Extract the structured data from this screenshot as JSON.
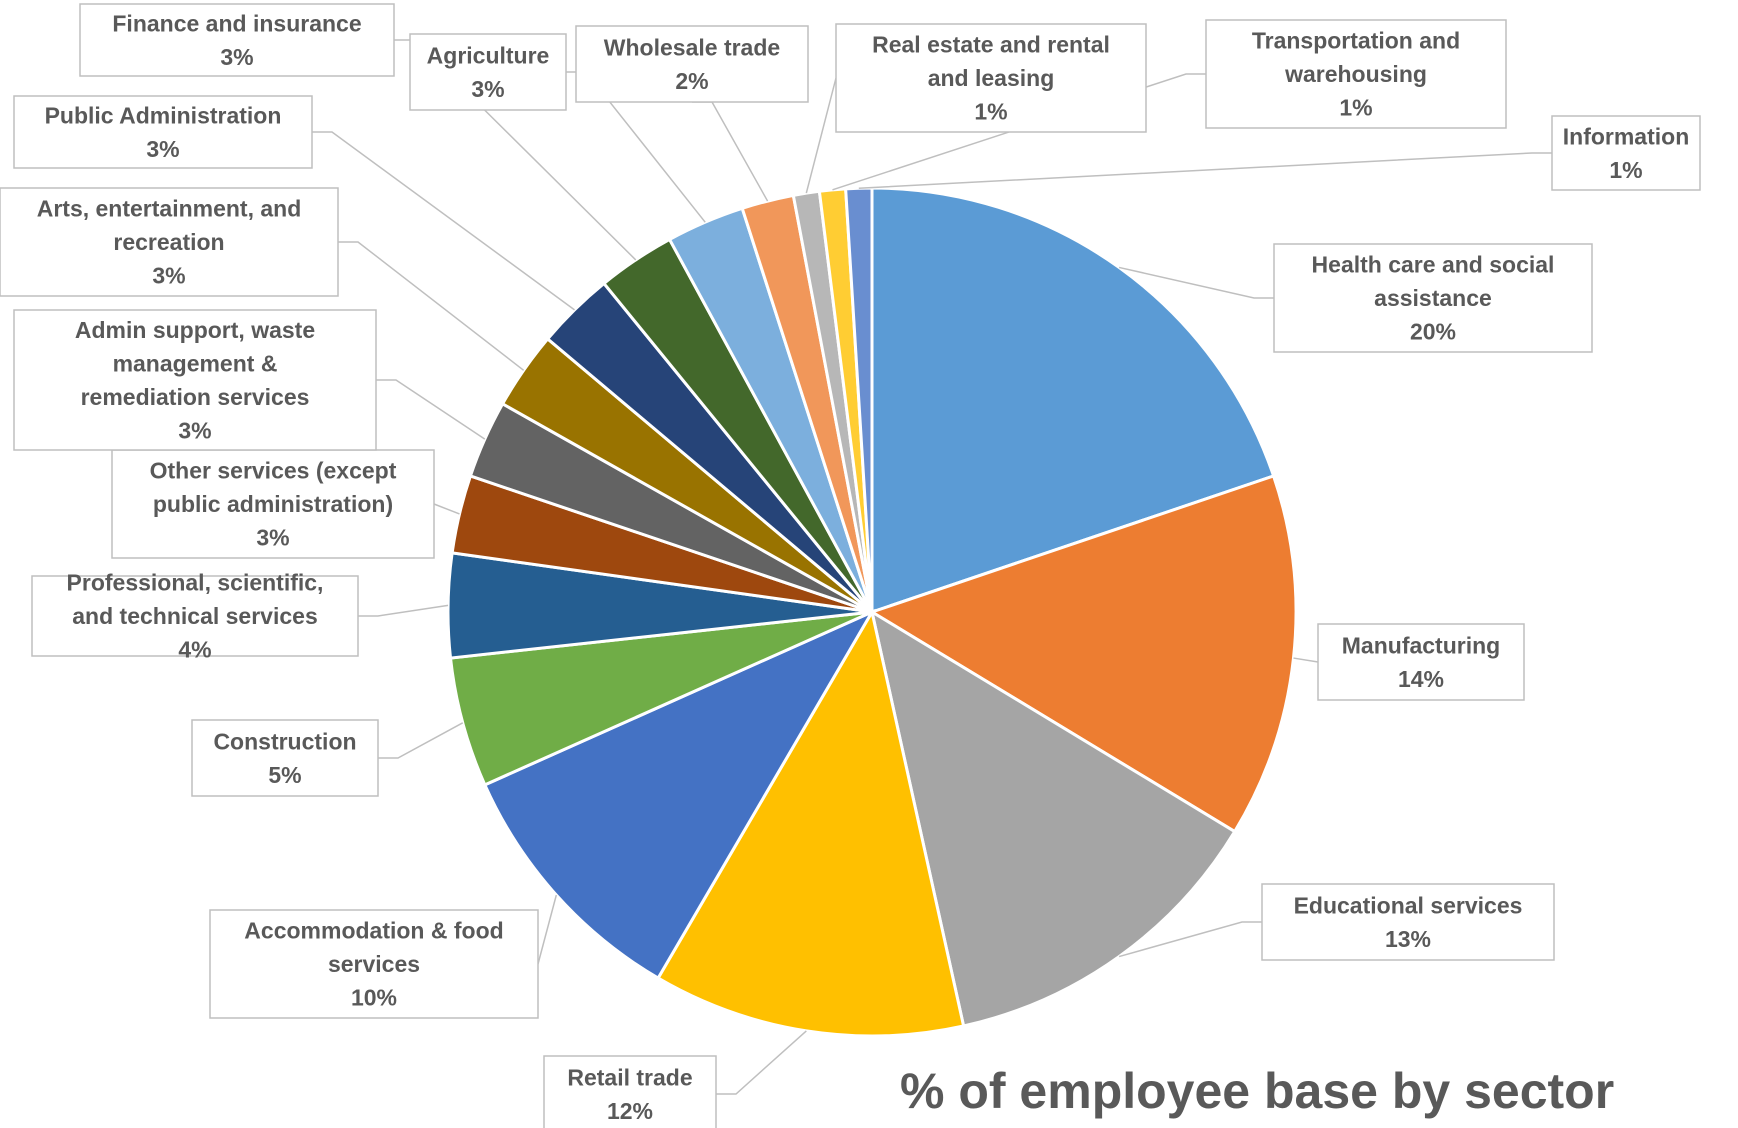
{
  "chart_data": {
    "type": "pie",
    "title": "% of employee base by sector",
    "slices": [
      {
        "label": "Health care and social assistance",
        "value": 20,
        "value_label": "20%",
        "color": "#5B9BD5"
      },
      {
        "label": "Manufacturing",
        "value": 14,
        "value_label": "14%",
        "color": "#ED7D31"
      },
      {
        "label": "Educational services",
        "value": 13,
        "value_label": "13%",
        "color": "#A5A5A5"
      },
      {
        "label": "Retail trade",
        "value": 12,
        "value_label": "12%",
        "color": "#FFC000"
      },
      {
        "label": "Accommodation & food services",
        "value": 10,
        "value_label": "10%",
        "color": "#4472C4"
      },
      {
        "label": "Construction",
        "value": 5,
        "value_label": "5%",
        "color": "#70AD47"
      },
      {
        "label": "Professional, scientific, and technical services",
        "value": 4,
        "value_label": "4%",
        "color": "#255E91"
      },
      {
        "label": "Other services (except public administration)",
        "value": 3,
        "value_label": "3%",
        "color": "#9E480E"
      },
      {
        "label": "Admin support, waste management & remediation services",
        "value": 3,
        "value_label": "3%",
        "color": "#636363"
      },
      {
        "label": "Arts, entertainment, and recreation",
        "value": 3,
        "value_label": "3%",
        "color": "#997300"
      },
      {
        "label": "Public Administration",
        "value": 3,
        "value_label": "3%",
        "color": "#264478"
      },
      {
        "label": "Finance and insurance",
        "value": 3,
        "value_label": "3%",
        "color": "#43682B"
      },
      {
        "label": "Agriculture",
        "value": 3,
        "value_label": "3%",
        "color": "#7CAFDD"
      },
      {
        "label": "Wholesale trade",
        "value": 2,
        "value_label": "2%",
        "color": "#F1975A"
      },
      {
        "label": "Real estate and rental and leasing",
        "value": 1,
        "value_label": "1%",
        "color": "#B7B7B7"
      },
      {
        "label": "Transportation and warehousing",
        "value": 1,
        "value_label": "1%",
        "color": "#FFCD33"
      },
      {
        "label": "Information",
        "value": 1,
        "value_label": "1%",
        "color": "#698ED0"
      }
    ],
    "data_label_lines": [
      [
        "Health care and social",
        "assistance",
        "20%"
      ],
      [
        "Manufacturing",
        "14%"
      ],
      [
        "Educational services",
        "13%"
      ],
      [
        "Retail trade",
        "12%"
      ],
      [
        "Accommodation & food",
        "services",
        "10%"
      ],
      [
        "Construction",
        "5%"
      ],
      [
        "Professional, scientific,",
        "and technical services",
        "4%"
      ],
      [
        "Other services (except",
        "public administration)",
        "3%"
      ],
      [
        "Admin support, waste",
        "management &",
        "remediation services",
        "3%"
      ],
      [
        "Arts, entertainment, and",
        "recreation",
        "3%"
      ],
      [
        "Public Administration",
        "3%"
      ],
      [
        "Finance and insurance",
        "3%"
      ],
      [
        "Agriculture",
        "3%"
      ],
      [
        "Wholesale trade",
        "2%"
      ],
      [
        "Real estate and rental",
        "and leasing",
        "1%"
      ],
      [
        "Transportation and",
        "warehousing",
        "1%"
      ],
      [
        "Information",
        "1%"
      ]
    ],
    "legend": "none"
  }
}
